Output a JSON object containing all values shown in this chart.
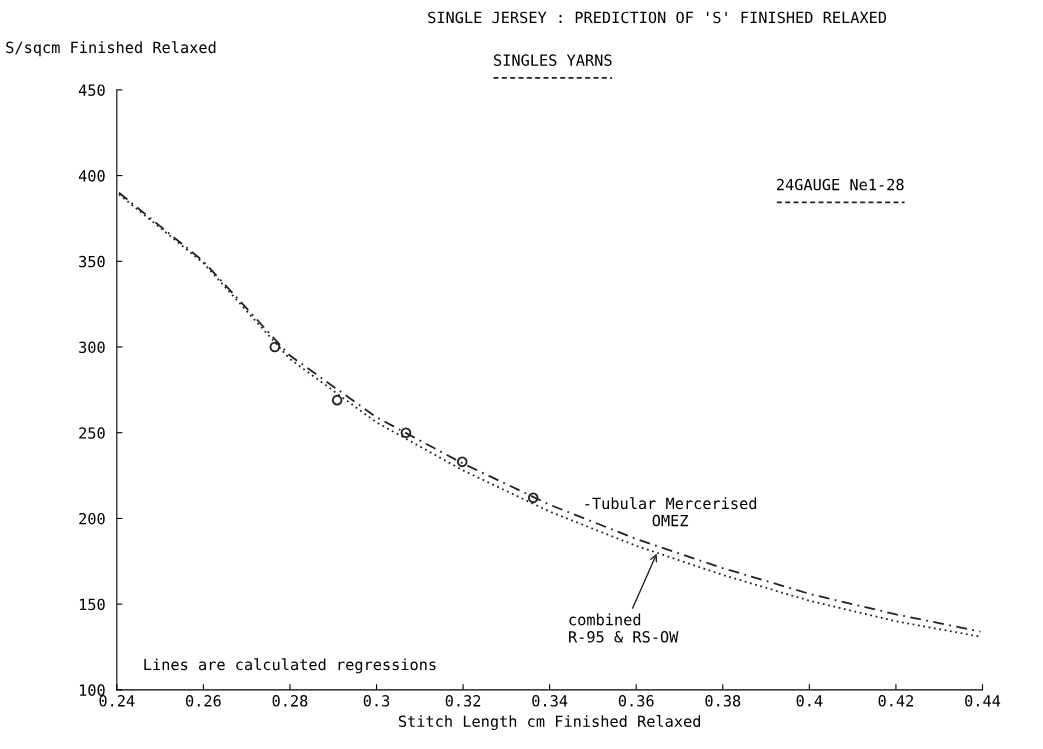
{
  "chart_data": {
    "type": "line",
    "title": "SINGLE JERSEY : PREDICTION OF 'S' FINISHED RELAXED",
    "subtitle": "SINGLES YARNS",
    "xlabel": "Stitch Length cm Finished Relaxed",
    "ylabel": "S/sqcm Finished Relaxed",
    "xlim": [
      0.24,
      0.44
    ],
    "xticks": [
      0.24,
      0.26,
      0.28,
      0.3,
      0.32,
      0.34,
      0.36,
      0.38,
      0.4,
      0.42,
      0.44
    ],
    "ylim": [
      100,
      450
    ],
    "yticks": [
      100,
      150,
      200,
      250,
      300,
      350,
      400,
      450
    ],
    "grid": false,
    "legend": false,
    "series": [
      {
        "color": "#222222",
        "line_style": "dashed",
        "x": [
          0.2405,
          0.26,
          0.28,
          0.3,
          0.32,
          0.34,
          0.36,
          0.38,
          0.4,
          0.42,
          0.4395
        ],
        "values": [
          390,
          350,
          295,
          259,
          232,
          208,
          188,
          171,
          156,
          144,
          134
        ]
      },
      {
        "color": "#222222",
        "line_style": "dotted",
        "x": [
          0.2405,
          0.26,
          0.28,
          0.3,
          0.32,
          0.34,
          0.36,
          0.38,
          0.4,
          0.42,
          0.4395
        ],
        "values": [
          389,
          349,
          293,
          256,
          228,
          204,
          184,
          167,
          152,
          140,
          131
        ]
      },
      {
        "type": "scatter",
        "color": "#222222",
        "marker": "circle",
        "x": [
          0.2765,
          0.2909,
          0.3068,
          0.3198,
          0.3362
        ],
        "values": [
          300,
          269,
          250,
          233,
          212
        ]
      }
    ],
    "annotations": [
      "24GAUGE Ne1-28",
      {
        "text": "-Tubular Mercerised\nOMEZ",
        "x": 0.347,
        "y": 203
      },
      {
        "text": "combined\nR-95 & RS-OW",
        "x": 0.365,
        "y": 181
      },
      "Lines are calculated regressions"
    ]
  }
}
